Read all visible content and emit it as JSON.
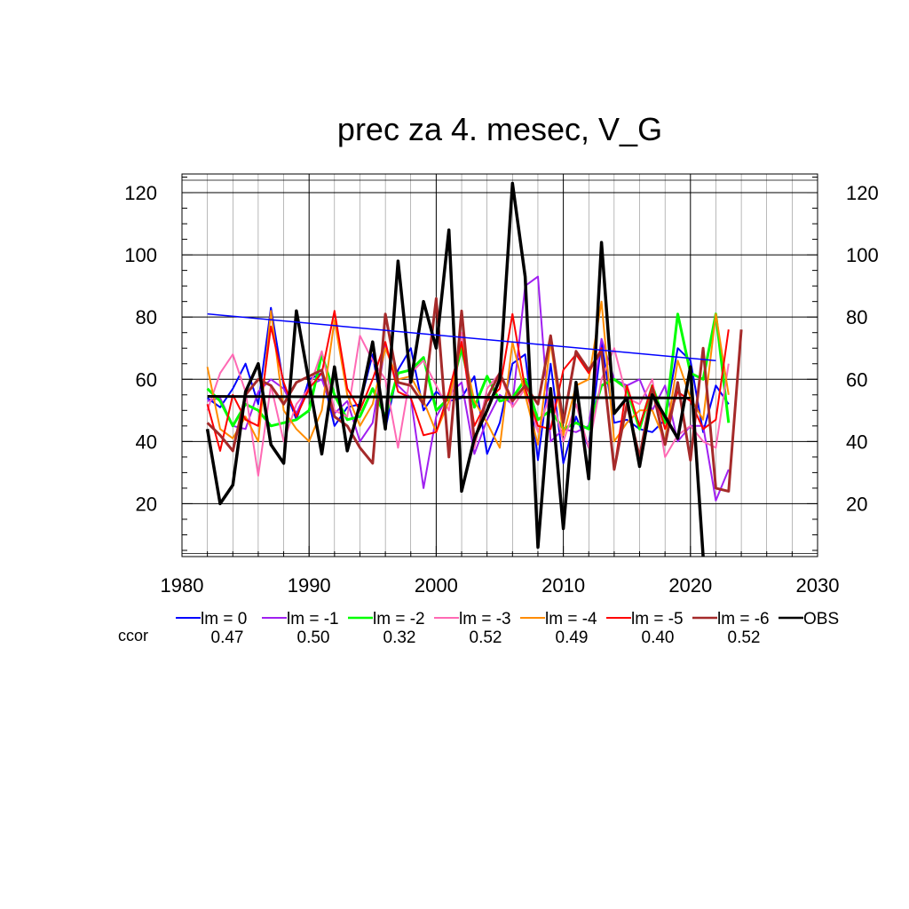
{
  "chart_data": {
    "type": "line",
    "title": "prec za 4. mesec, V_G",
    "xlabel": "",
    "ylabel": "",
    "xlim": [
      1980,
      2030
    ],
    "ylim": [
      3,
      126
    ],
    "x_ticks": [
      1980,
      1990,
      2000,
      2010,
      2020,
      2030
    ],
    "y_ticks": [
      20,
      40,
      60,
      80,
      100,
      120
    ],
    "grid": true,
    "legend_position": "bottom",
    "ccor_label": "ccor",
    "series": [
      {
        "name": "lm = 0",
        "color": "#0000ff",
        "ccor": "0.47",
        "width": 2,
        "x_start": 1982,
        "values": [
          54,
          51,
          57,
          65,
          52,
          83,
          58,
          47,
          60,
          62,
          45,
          51,
          52,
          68,
          44,
          63,
          70,
          50,
          56,
          53,
          54,
          61,
          36,
          46,
          65,
          68,
          34,
          65,
          33,
          48,
          38,
          72,
          46,
          47,
          44,
          43,
          47,
          70,
          66,
          43,
          58,
          52
        ]
      },
      {
        "name": "lm = -1",
        "color": "#a020f0",
        "ccor": "0.50",
        "width": 2,
        "x_start": 1982,
        "values": [
          53,
          54,
          45,
          44,
          56,
          60,
          57,
          49,
          58,
          60,
          49,
          53,
          40,
          46,
          71,
          58,
          54,
          25,
          48,
          55,
          59,
          36,
          47,
          55,
          52,
          90,
          93,
          40,
          44,
          43,
          45,
          73,
          60,
          58,
          60,
          50,
          58,
          40,
          45,
          45,
          21,
          31
        ]
      },
      {
        "name": "lm = -2",
        "color": "#00ff00",
        "ccor": "0.32",
        "width": 3,
        "x_start": 1982,
        "values": [
          57,
          53,
          45,
          52,
          50,
          45,
          46,
          47,
          50,
          68,
          55,
          47,
          48,
          57,
          48,
          62,
          63,
          67,
          50,
          54,
          70,
          51,
          61,
          53,
          54,
          60,
          47,
          50,
          44,
          46,
          44,
          58,
          60,
          57,
          44,
          58,
          46,
          81,
          62,
          60,
          81,
          46
        ]
      },
      {
        "name": "lm = -3",
        "color": "#ff69b4",
        "ccor": "0.52",
        "width": 2,
        "x_start": 1982,
        "values": [
          50,
          62,
          68,
          56,
          29,
          58,
          40,
          52,
          57,
          69,
          50,
          48,
          74,
          66,
          60,
          38,
          62,
          66,
          58,
          50,
          75,
          38,
          57,
          62,
          51,
          57,
          43,
          56,
          40,
          52,
          38,
          60,
          70,
          54,
          52,
          60,
          35,
          42,
          45,
          40,
          38,
          65
        ]
      },
      {
        "name": "lm = -4",
        "color": "#ff8c00",
        "ccor": "0.49",
        "width": 2,
        "x_start": 1982,
        "values": [
          64,
          44,
          41,
          48,
          40,
          82,
          50,
          44,
          40,
          50,
          79,
          55,
          45,
          52,
          70,
          60,
          61,
          53,
          43,
          53,
          72,
          53,
          46,
          38,
          72,
          55,
          39,
          72,
          42,
          58,
          60,
          85,
          40,
          46,
          50,
          50,
          40,
          66,
          54,
          47,
          81,
          55
        ]
      },
      {
        "name": "lm = -5",
        "color": "#ff0000",
        "ccor": "0.40",
        "width": 2,
        "x_start": 1982,
        "values": [
          52,
          37,
          55,
          47,
          45,
          77,
          59,
          48,
          57,
          62,
          82,
          57,
          50,
          60,
          72,
          56,
          54,
          42,
          43,
          56,
          72,
          45,
          53,
          57,
          81,
          57,
          45,
          44,
          63,
          68,
          62,
          70,
          31,
          58,
          45,
          58,
          44,
          56,
          53,
          44,
          47,
          76
        ]
      },
      {
        "name": "lm = -6",
        "color": "#a52a2a",
        "ccor": "0.52",
        "width": 3,
        "x_start": 1982,
        "values": [
          46,
          42,
          37,
          55,
          60,
          58,
          52,
          59,
          61,
          63,
          48,
          45,
          38,
          33,
          81,
          59,
          58,
          52,
          86,
          35,
          82,
          40,
          54,
          62,
          53,
          58,
          52,
          74,
          46,
          69,
          63,
          69,
          31,
          52,
          35,
          57,
          39,
          59,
          34,
          70,
          25,
          24,
          76
        ]
      },
      {
        "name": "OBS",
        "color": "#000000",
        "ccor": "",
        "width": 3.5,
        "x_start": 1982,
        "values": [
          44,
          20,
          26,
          56,
          65,
          39,
          33,
          82,
          59,
          36,
          64,
          37,
          52,
          72,
          44,
          98,
          59,
          85,
          70,
          108,
          24,
          41,
          50,
          60,
          123,
          93,
          6,
          57,
          12,
          59,
          28,
          104,
          49,
          54,
          32,
          55,
          48,
          41,
          64,
          3
        ]
      }
    ],
    "trend_lines": [
      {
        "series": "lm = 0",
        "color": "#0000ff",
        "width": 1.5,
        "x": [
          1982,
          2022
        ],
        "y": [
          81,
          66
        ]
      },
      {
        "series": "OBS",
        "color": "#000000",
        "width": 3,
        "x": [
          1982,
          2020
        ],
        "y": [
          54.5,
          54
        ]
      }
    ]
  }
}
